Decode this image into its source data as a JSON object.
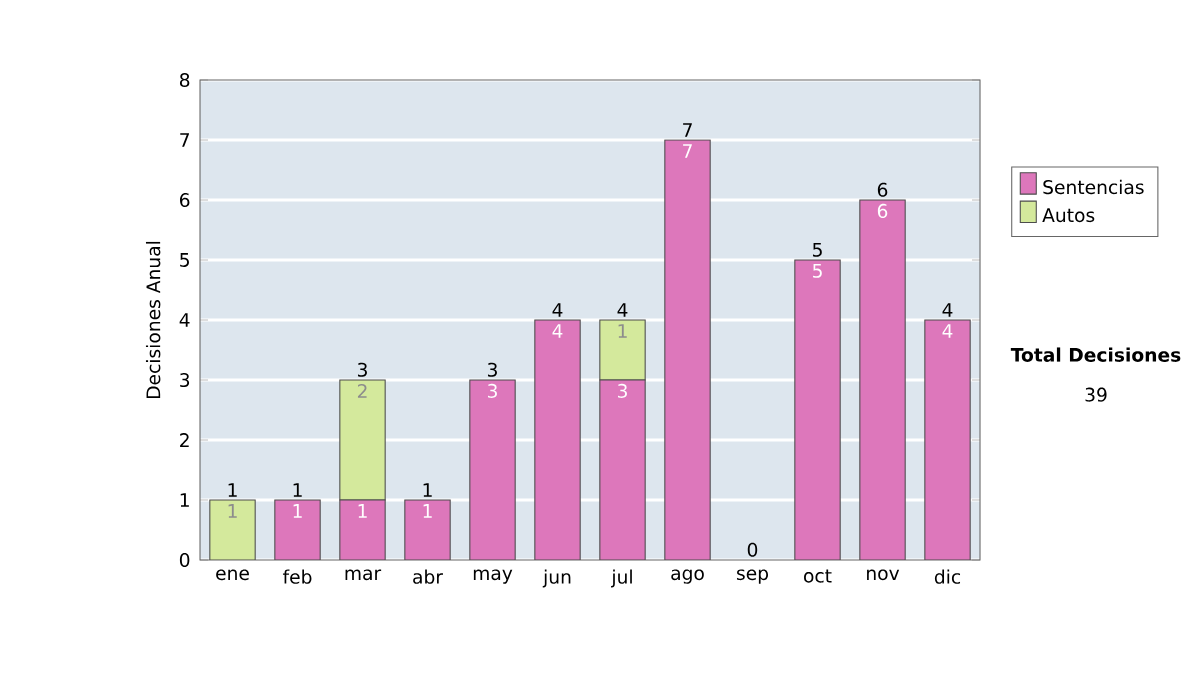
{
  "chart_data": {
    "type": "bar",
    "stacked": true,
    "ylabel": "Decisiones Anual",
    "categories": [
      "ene",
      "feb",
      "mar",
      "abr",
      "may",
      "jun",
      "jul",
      "ago",
      "sep",
      "oct",
      "nov",
      "dic"
    ],
    "series": [
      {
        "name": "Sentencias",
        "color": "#dd77bb",
        "values": [
          0,
          1,
          1,
          1,
          3,
          4,
          3,
          7,
          0,
          5,
          6,
          4
        ],
        "value_labels": [
          null,
          "1",
          "1",
          "1",
          "3",
          "4",
          "3",
          "7",
          null,
          "5",
          "6",
          "4"
        ]
      },
      {
        "name": "Autos",
        "color": "#d4e99c",
        "values": [
          1,
          0,
          2,
          0,
          0,
          0,
          1,
          0,
          0,
          0,
          0,
          0
        ],
        "value_labels": [
          "1",
          null,
          "2",
          null,
          null,
          null,
          "1",
          null,
          null,
          null,
          null,
          null
        ]
      }
    ],
    "totals": [
      "1",
      "1",
      "3",
      "1",
      "3",
      "4",
      "4",
      "7",
      "0",
      "5",
      "6",
      "4"
    ],
    "ylim": [
      0,
      8
    ],
    "yticks": [
      0,
      1,
      2,
      3,
      4,
      5,
      6,
      7,
      8
    ],
    "grid": "y",
    "legend": "right",
    "annotations": [
      "Total Decisiones",
      "39"
    ]
  }
}
